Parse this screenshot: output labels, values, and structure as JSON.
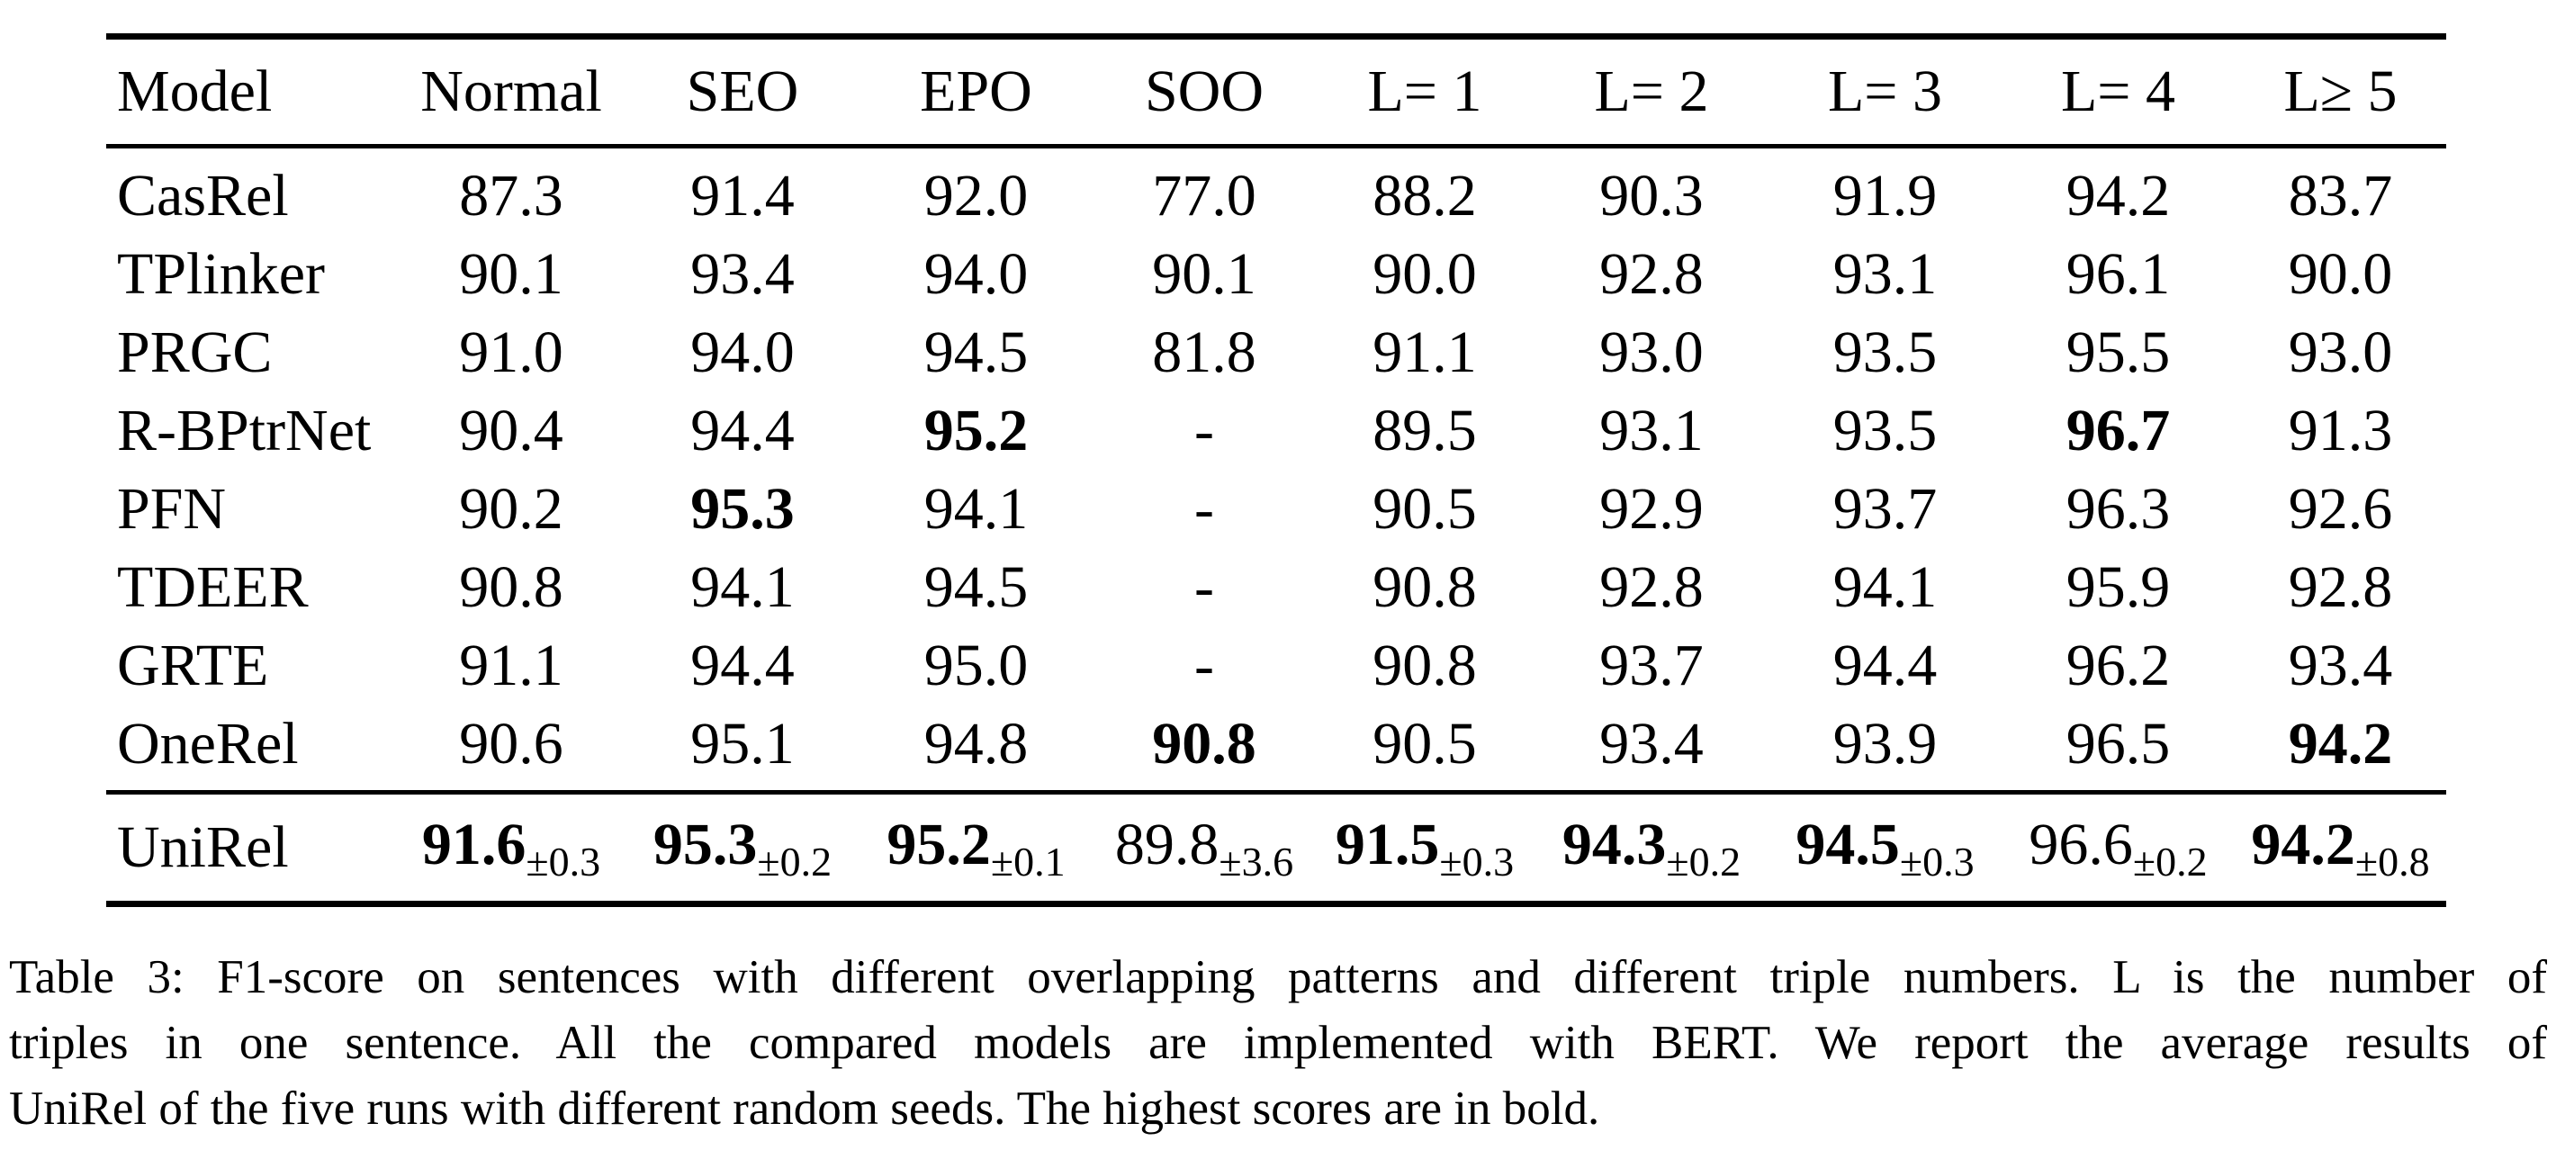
{
  "page": {
    "background_color": "#ffffff",
    "text_color": "#000000"
  },
  "table": {
    "header": [
      "Model",
      "Normal",
      "SEO",
      "EPO",
      "SOO",
      "L= 1",
      "L= 2",
      "L= 3",
      "L= 4",
      "L≥ 5"
    ],
    "body_rows": [
      {
        "model": "CasRel",
        "cells": [
          "87.3",
          "91.4",
          "92.0",
          "77.0",
          "88.2",
          "90.3",
          "91.9",
          "94.2",
          "83.7"
        ],
        "bold": []
      },
      {
        "model": "TPlinker",
        "cells": [
          "90.1",
          "93.4",
          "94.0",
          "90.1",
          "90.0",
          "92.8",
          "93.1",
          "96.1",
          "90.0"
        ],
        "bold": []
      },
      {
        "model": "PRGC",
        "cells": [
          "91.0",
          "94.0",
          "94.5",
          "81.8",
          "91.1",
          "93.0",
          "93.5",
          "95.5",
          "93.0"
        ],
        "bold": []
      },
      {
        "model": "R-BPtrNet",
        "cells": [
          "90.4",
          "94.4",
          "95.2",
          "-",
          "89.5",
          "93.1",
          "93.5",
          "96.7",
          "91.3"
        ],
        "bold": [
          2,
          7
        ]
      },
      {
        "model": "PFN",
        "cells": [
          "90.2",
          "95.3",
          "94.1",
          "-",
          "90.5",
          "92.9",
          "93.7",
          "96.3",
          "92.6"
        ],
        "bold": [
          1
        ]
      },
      {
        "model": "TDEER",
        "cells": [
          "90.8",
          "94.1",
          "94.5",
          "-",
          "90.8",
          "92.8",
          "94.1",
          "95.9",
          "92.8"
        ],
        "bold": []
      },
      {
        "model": "GRTE",
        "cells": [
          "91.1",
          "94.4",
          "95.0",
          "-",
          "90.8",
          "93.7",
          "94.4",
          "96.2",
          "93.4"
        ],
        "bold": []
      },
      {
        "model": "OneRel",
        "cells": [
          "90.6",
          "95.1",
          "94.8",
          "90.8",
          "90.5",
          "93.4",
          "93.9",
          "96.5",
          "94.2"
        ],
        "bold": [
          3,
          8
        ]
      }
    ],
    "footer_row": {
      "model": "UniRel",
      "cells": [
        {
          "main": "91.6",
          "sub": "±0.3",
          "bold": true
        },
        {
          "main": "95.3",
          "sub": "±0.2",
          "bold": true
        },
        {
          "main": "95.2",
          "sub": "±0.1",
          "bold": true
        },
        {
          "main": "89.8",
          "sub": "±3.6",
          "bold": false
        },
        {
          "main": "91.5",
          "sub": "±0.3",
          "bold": true
        },
        {
          "main": "94.3",
          "sub": "±0.2",
          "bold": true
        },
        {
          "main": "94.5",
          "sub": "±0.3",
          "bold": true
        },
        {
          "main": "96.6",
          "sub": "±0.2",
          "bold": false
        },
        {
          "main": "94.2",
          "sub": "±0.8",
          "bold": true
        }
      ]
    }
  },
  "caption": {
    "lines": [
      "Table 3: F1-score on sentences with different overlapping patterns and different triple numbers. L is the number of",
      "triples in one sentence. All the compared models are implemented with BERT. We report the average results of",
      "UniRel of the five runs with different random seeds. The highest scores are in bold."
    ]
  }
}
